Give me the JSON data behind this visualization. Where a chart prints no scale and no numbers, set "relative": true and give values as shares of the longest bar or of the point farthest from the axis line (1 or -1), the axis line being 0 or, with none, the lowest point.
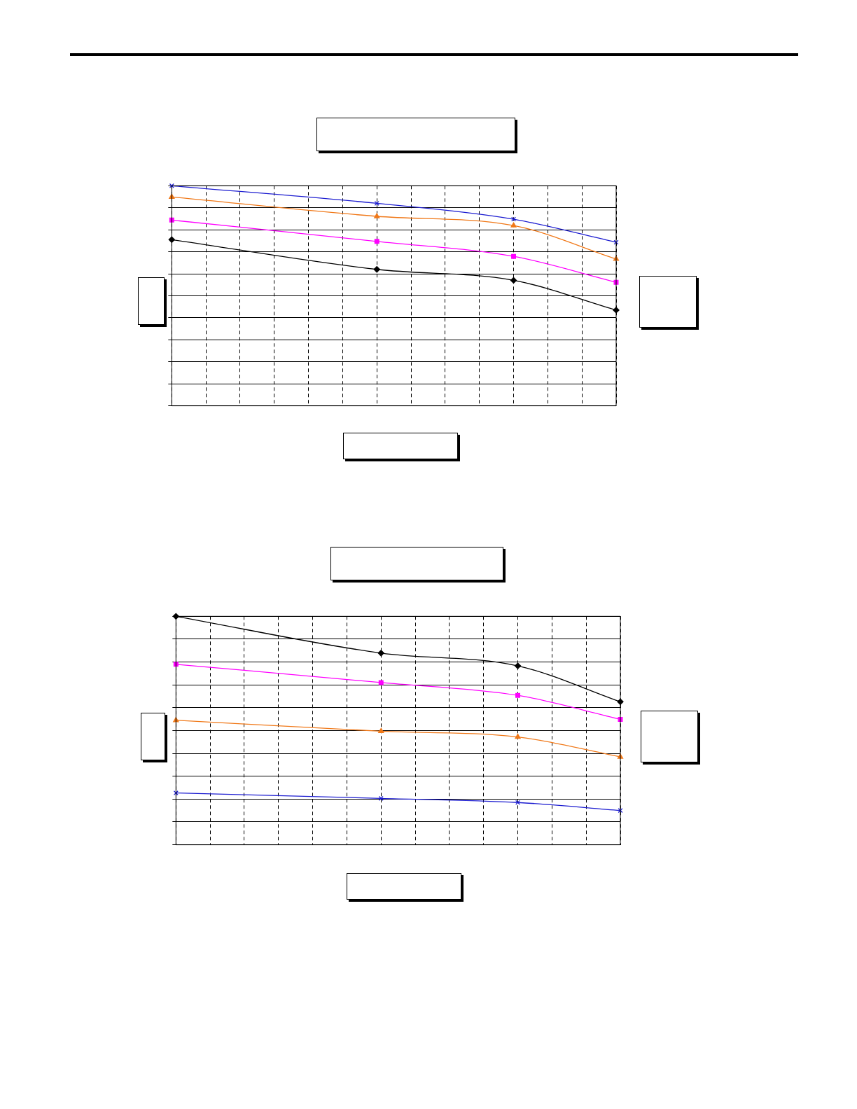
{
  "chart_data": [
    {
      "type": "line",
      "relative": true,
      "grid": true,
      "categories": [
        null,
        null,
        null,
        null,
        null,
        null,
        null,
        null,
        null,
        null,
        null,
        null,
        null,
        null
      ],
      "series": [
        {
          "color": "#000000",
          "marker": "diamond",
          "values": [
            0.755,
            null,
            null,
            null,
            null,
            null,
            0.62,
            null,
            null,
            null,
            0.57,
            null,
            null,
            0.435
          ]
        },
        {
          "color": "#ff00ff",
          "marker": "square",
          "values": [
            0.844,
            null,
            null,
            null,
            null,
            null,
            0.747,
            null,
            null,
            null,
            0.679,
            null,
            null,
            0.561
          ]
        },
        {
          "color": "#f07818",
          "marker": "triangle",
          "values": [
            0.949,
            null,
            null,
            null,
            null,
            null,
            0.861,
            null,
            null,
            null,
            0.819,
            null,
            null,
            0.667
          ]
        },
        {
          "color": "#1c1cd0",
          "marker": "cross",
          "values": [
            1,
            null,
            null,
            null,
            null,
            null,
            0.92,
            null,
            null,
            null,
            0.848,
            null,
            null,
            0.743
          ]
        }
      ]
    },
    {
      "type": "line",
      "relative": true,
      "grid": true,
      "categories": [
        null,
        null,
        null,
        null,
        null,
        null,
        null,
        null,
        null,
        null,
        null,
        null,
        null,
        null
      ],
      "series": [
        {
          "color": "#000000",
          "marker": "diamond",
          "values": [
            1,
            null,
            null,
            null,
            null,
            null,
            0.839,
            null,
            null,
            null,
            0.783,
            null,
            null,
            0.626
          ]
        },
        {
          "color": "#ff00ff",
          "marker": "square",
          "values": [
            0.79,
            null,
            null,
            null,
            null,
            null,
            0.71,
            null,
            null,
            null,
            0.654,
            null,
            null,
            0.549
          ]
        },
        {
          "color": "#f07818",
          "marker": "triangle",
          "values": [
            0.545,
            null,
            null,
            null,
            null,
            null,
            0.497,
            null,
            null,
            null,
            0.472,
            null,
            null,
            0.385
          ]
        },
        {
          "color": "#1c1cd0",
          "marker": "cross",
          "values": [
            0.227,
            null,
            null,
            null,
            null,
            null,
            0.203,
            null,
            null,
            null,
            0.185,
            null,
            null,
            0.15
          ]
        }
      ]
    }
  ]
}
